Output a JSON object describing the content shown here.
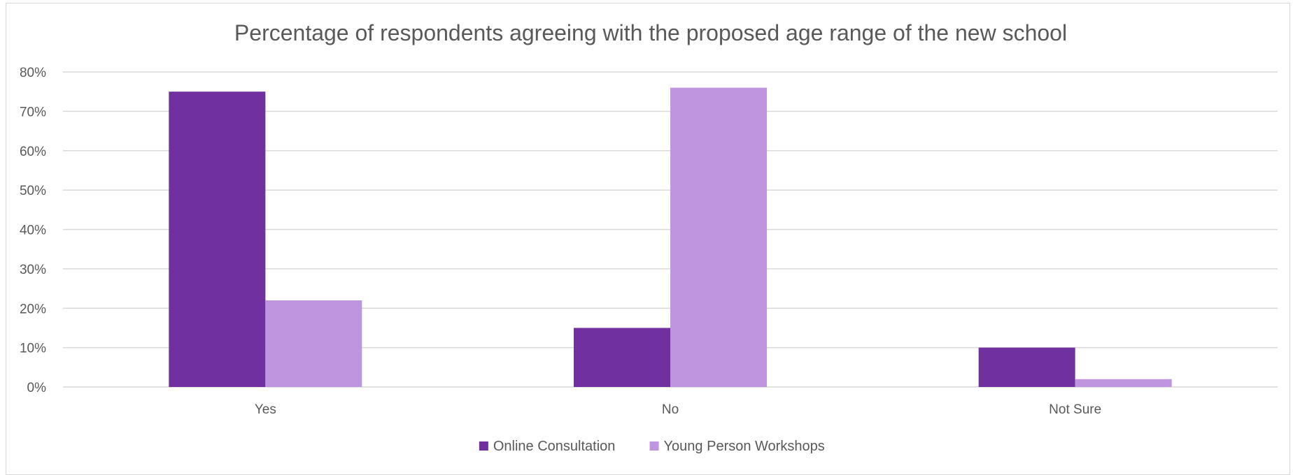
{
  "chart_data": {
    "type": "bar",
    "title": "Percentage of respondents agreeing with the proposed age range of the new school",
    "xlabel": "",
    "ylabel": "",
    "categories": [
      "Yes",
      "No",
      "Not Sure"
    ],
    "series": [
      {
        "name": "Online Consultation",
        "values": [
          75,
          15,
          10
        ],
        "color": "#7030a0"
      },
      {
        "name": "Young Person Workshops",
        "values": [
          22,
          76,
          2
        ],
        "color": "#bf95df"
      }
    ],
    "ylim": [
      0,
      80
    ],
    "y_ticks": [
      0,
      10,
      20,
      30,
      40,
      50,
      60,
      70,
      80
    ],
    "y_tick_labels": [
      "0%",
      "10%",
      "20%",
      "30%",
      "40%",
      "50%",
      "60%",
      "70%",
      "80%"
    ],
    "grid": true,
    "legend_position": "bottom",
    "colors": {
      "gridline": "#d9d9d9",
      "text": "#595959"
    }
  }
}
